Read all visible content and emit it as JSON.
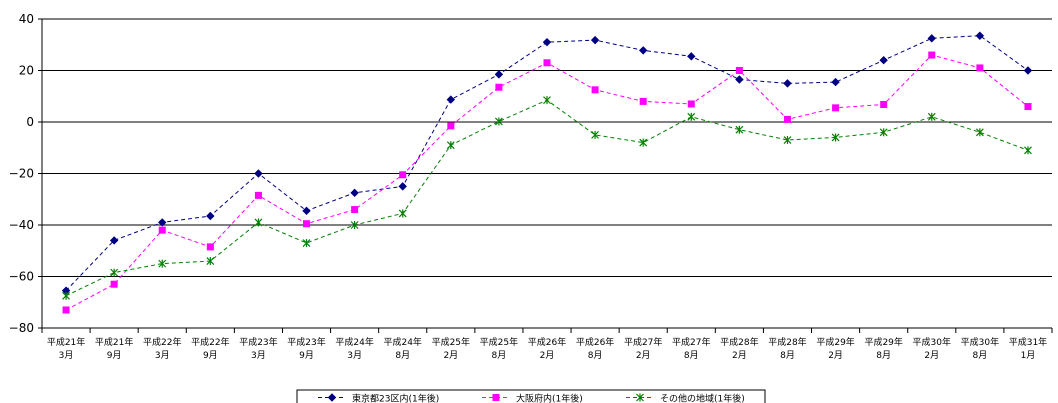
{
  "chart_data": {
    "type": "line",
    "categories": [
      [
        "平成21年",
        "3月"
      ],
      [
        "平成21年",
        "9月"
      ],
      [
        "平成22年",
        "3月"
      ],
      [
        "平成22年",
        "9月"
      ],
      [
        "平成23年",
        "3月"
      ],
      [
        "平成23年",
        "9月"
      ],
      [
        "平成24年",
        "3月"
      ],
      [
        "平成24年",
        "8月"
      ],
      [
        "平成25年",
        "2月"
      ],
      [
        "平成25年",
        "8月"
      ],
      [
        "平成26年",
        "2月"
      ],
      [
        "平成26年",
        "8月"
      ],
      [
        "平成27年",
        "2月"
      ],
      [
        "平成27年",
        "8月"
      ],
      [
        "平成28年",
        "2月"
      ],
      [
        "平成28年",
        "8月"
      ],
      [
        "平成29年",
        "2月"
      ],
      [
        "平成29年",
        "8月"
      ],
      [
        "平成30年",
        "2月"
      ],
      [
        "平成30年",
        "8月"
      ],
      [
        "平成31年",
        "1月"
      ]
    ],
    "series": [
      {
        "name": "東京都23区内(1年後)",
        "color": "#000080",
        "marker": "diamond",
        "values": [
          -65.5,
          -46,
          -39,
          -36.5,
          -20,
          -34.5,
          -27.5,
          -25,
          8.7,
          18.5,
          31,
          31.8,
          27.8,
          25.5,
          16.5,
          15,
          15.5,
          24,
          32.5,
          33.5,
          20
        ]
      },
      {
        "name": "大阪府内(1年後)",
        "color": "#ff00ff",
        "marker": "square",
        "values": [
          -73,
          -63,
          -42,
          -48.5,
          -28.5,
          -39.5,
          -34,
          -20.5,
          -1.5,
          13.5,
          23,
          12.5,
          8,
          7,
          20,
          1,
          5.5,
          6.8,
          26,
          21,
          6
        ]
      },
      {
        "name": "その他の地域(1年後)",
        "color": "#008000",
        "marker": "star",
        "values": [
          -67.5,
          -58.5,
          -55,
          -54,
          -39,
          -47,
          -40,
          -35.5,
          -9,
          0.2,
          8.5,
          -5,
          -8,
          2,
          -3,
          -7,
          -6,
          -4,
          2,
          -4,
          -11
        ]
      }
    ],
    "y_ticks": [
      "40",
      "20",
      "0",
      "-20",
      "-40",
      "-60",
      "-80"
    ],
    "ylim": [
      -80,
      40
    ],
    "grid": true,
    "legend_position": "bottom-center",
    "title": "",
    "xlabel": "",
    "ylabel": ""
  }
}
